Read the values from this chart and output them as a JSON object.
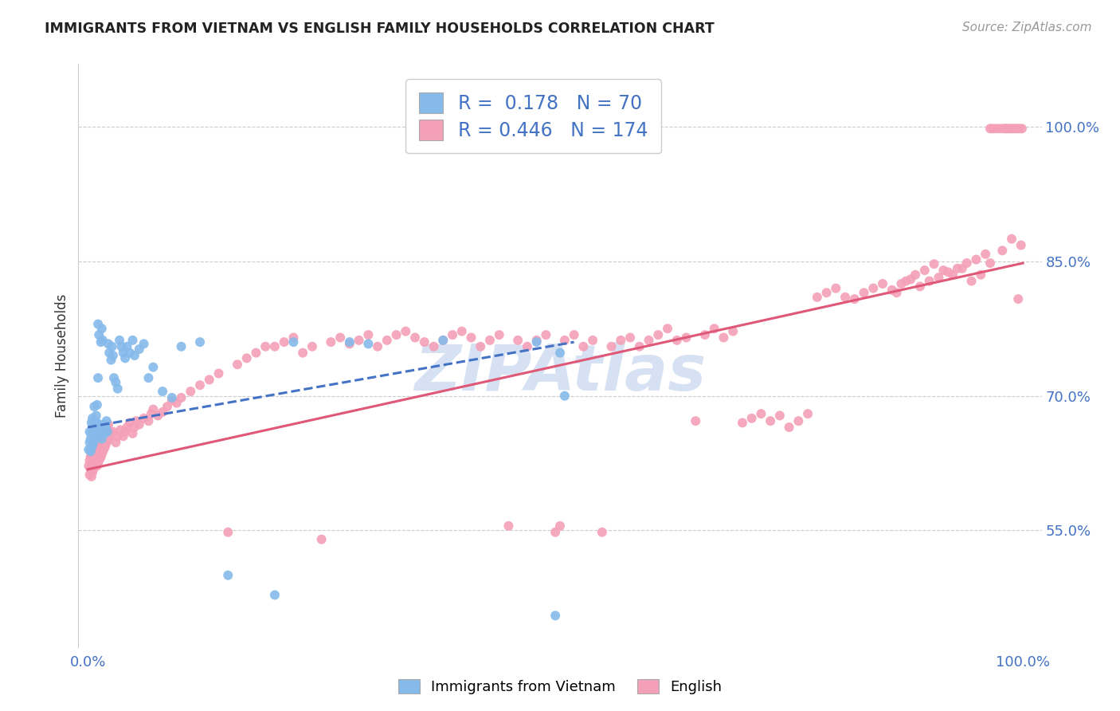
{
  "title": "IMMIGRANTS FROM VIETNAM VS ENGLISH FAMILY HOUSEHOLDS CORRELATION CHART",
  "source": "Source: ZipAtlas.com",
  "ylabel": "Family Households",
  "x_tick_labels": [
    "0.0%",
    "100.0%"
  ],
  "y_tick_labels": [
    "55.0%",
    "70.0%",
    "85.0%",
    "100.0%"
  ],
  "y_tick_values": [
    0.55,
    0.7,
    0.85,
    1.0
  ],
  "x_lim": [
    -0.01,
    1.02
  ],
  "y_lim": [
    0.42,
    1.07
  ],
  "blue_R": "0.178",
  "blue_N": "70",
  "pink_R": "0.446",
  "pink_N": "174",
  "blue_color": "#85BAEA",
  "pink_color": "#F4A0B8",
  "blue_line_color": "#4472C4",
  "pink_line_color": "#E05878",
  "title_color": "#222222",
  "source_color": "#999999",
  "legend_R_N_color": "#4472C4",
  "axis_label_color": "#4472C4",
  "watermark_color": "#C5D5EE",
  "grid_color": "#CCCCCC",
  "blue_line": [
    0.0,
    0.665,
    0.52,
    0.76
  ],
  "pink_line": [
    0.0,
    0.618,
    1.0,
    0.848
  ],
  "blue_scatter": [
    [
      0.001,
      0.64
    ],
    [
      0.002,
      0.648
    ],
    [
      0.002,
      0.66
    ],
    [
      0.003,
      0.638
    ],
    [
      0.003,
      0.652
    ],
    [
      0.004,
      0.642
    ],
    [
      0.004,
      0.658
    ],
    [
      0.004,
      0.67
    ],
    [
      0.005,
      0.645
    ],
    [
      0.005,
      0.66
    ],
    [
      0.005,
      0.675
    ],
    [
      0.006,
      0.648
    ],
    [
      0.006,
      0.663
    ],
    [
      0.007,
      0.652
    ],
    [
      0.007,
      0.668
    ],
    [
      0.007,
      0.688
    ],
    [
      0.008,
      0.658
    ],
    [
      0.008,
      0.672
    ],
    [
      0.009,
      0.662
    ],
    [
      0.009,
      0.678
    ],
    [
      0.01,
      0.655
    ],
    [
      0.01,
      0.67
    ],
    [
      0.01,
      0.69
    ],
    [
      0.011,
      0.72
    ],
    [
      0.011,
      0.78
    ],
    [
      0.012,
      0.768
    ],
    [
      0.013,
      0.66
    ],
    [
      0.014,
      0.76
    ],
    [
      0.015,
      0.652
    ],
    [
      0.015,
      0.775
    ],
    [
      0.016,
      0.762
    ],
    [
      0.017,
      0.668
    ],
    [
      0.018,
      0.658
    ],
    [
      0.019,
      0.665
    ],
    [
      0.02,
      0.672
    ],
    [
      0.021,
      0.66
    ],
    [
      0.022,
      0.758
    ],
    [
      0.023,
      0.748
    ],
    [
      0.025,
      0.74
    ],
    [
      0.026,
      0.755
    ],
    [
      0.027,
      0.745
    ],
    [
      0.028,
      0.72
    ],
    [
      0.03,
      0.715
    ],
    [
      0.032,
      0.708
    ],
    [
      0.034,
      0.762
    ],
    [
      0.036,
      0.755
    ],
    [
      0.038,
      0.748
    ],
    [
      0.04,
      0.742
    ],
    [
      0.042,
      0.755
    ],
    [
      0.045,
      0.748
    ],
    [
      0.048,
      0.762
    ],
    [
      0.05,
      0.745
    ],
    [
      0.055,
      0.752
    ],
    [
      0.06,
      0.758
    ],
    [
      0.065,
      0.72
    ],
    [
      0.07,
      0.732
    ],
    [
      0.08,
      0.705
    ],
    [
      0.09,
      0.698
    ],
    [
      0.1,
      0.755
    ],
    [
      0.12,
      0.76
    ],
    [
      0.15,
      0.5
    ],
    [
      0.2,
      0.478
    ],
    [
      0.22,
      0.76
    ],
    [
      0.28,
      0.76
    ],
    [
      0.3,
      0.758
    ],
    [
      0.38,
      0.762
    ],
    [
      0.48,
      0.76
    ],
    [
      0.5,
      0.455
    ],
    [
      0.505,
      0.748
    ],
    [
      0.51,
      0.7
    ]
  ],
  "pink_scatter": [
    [
      0.001,
      0.622
    ],
    [
      0.002,
      0.612
    ],
    [
      0.002,
      0.628
    ],
    [
      0.003,
      0.618
    ],
    [
      0.003,
      0.632
    ],
    [
      0.004,
      0.61
    ],
    [
      0.004,
      0.622
    ],
    [
      0.004,
      0.636
    ],
    [
      0.005,
      0.615
    ],
    [
      0.005,
      0.625
    ],
    [
      0.005,
      0.64
    ],
    [
      0.006,
      0.618
    ],
    [
      0.006,
      0.63
    ],
    [
      0.007,
      0.622
    ],
    [
      0.007,
      0.635
    ],
    [
      0.007,
      0.65
    ],
    [
      0.008,
      0.625
    ],
    [
      0.008,
      0.638
    ],
    [
      0.008,
      0.652
    ],
    [
      0.009,
      0.628
    ],
    [
      0.009,
      0.64
    ],
    [
      0.01,
      0.622
    ],
    [
      0.01,
      0.635
    ],
    [
      0.01,
      0.648
    ],
    [
      0.011,
      0.625
    ],
    [
      0.011,
      0.64
    ],
    [
      0.012,
      0.628
    ],
    [
      0.012,
      0.642
    ],
    [
      0.013,
      0.63
    ],
    [
      0.013,
      0.645
    ],
    [
      0.014,
      0.632
    ],
    [
      0.014,
      0.648
    ],
    [
      0.015,
      0.635
    ],
    [
      0.015,
      0.65
    ],
    [
      0.016,
      0.638
    ],
    [
      0.016,
      0.652
    ],
    [
      0.017,
      0.64
    ],
    [
      0.017,
      0.655
    ],
    [
      0.018,
      0.642
    ],
    [
      0.018,
      0.658
    ],
    [
      0.019,
      0.645
    ],
    [
      0.019,
      0.66
    ],
    [
      0.02,
      0.648
    ],
    [
      0.02,
      0.662
    ],
    [
      0.021,
      0.65
    ],
    [
      0.021,
      0.665
    ],
    [
      0.022,
      0.652
    ],
    [
      0.022,
      0.668
    ],
    [
      0.023,
      0.655
    ],
    [
      0.025,
      0.658
    ],
    [
      0.027,
      0.66
    ],
    [
      0.03,
      0.648
    ],
    [
      0.032,
      0.655
    ],
    [
      0.035,
      0.662
    ],
    [
      0.038,
      0.655
    ],
    [
      0.04,
      0.66
    ],
    [
      0.042,
      0.665
    ],
    [
      0.045,
      0.67
    ],
    [
      0.048,
      0.658
    ],
    [
      0.05,
      0.665
    ],
    [
      0.052,
      0.672
    ],
    [
      0.055,
      0.668
    ],
    [
      0.06,
      0.675
    ],
    [
      0.065,
      0.672
    ],
    [
      0.068,
      0.68
    ],
    [
      0.07,
      0.685
    ],
    [
      0.075,
      0.678
    ],
    [
      0.08,
      0.682
    ],
    [
      0.085,
      0.688
    ],
    [
      0.09,
      0.695
    ],
    [
      0.095,
      0.692
    ],
    [
      0.1,
      0.698
    ],
    [
      0.11,
      0.705
    ],
    [
      0.12,
      0.712
    ],
    [
      0.13,
      0.718
    ],
    [
      0.14,
      0.725
    ],
    [
      0.15,
      0.548
    ],
    [
      0.16,
      0.735
    ],
    [
      0.17,
      0.742
    ],
    [
      0.18,
      0.748
    ],
    [
      0.19,
      0.755
    ],
    [
      0.2,
      0.755
    ],
    [
      0.21,
      0.76
    ],
    [
      0.22,
      0.765
    ],
    [
      0.23,
      0.748
    ],
    [
      0.24,
      0.755
    ],
    [
      0.25,
      0.54
    ],
    [
      0.26,
      0.76
    ],
    [
      0.27,
      0.765
    ],
    [
      0.28,
      0.758
    ],
    [
      0.29,
      0.762
    ],
    [
      0.3,
      0.768
    ],
    [
      0.31,
      0.755
    ],
    [
      0.32,
      0.762
    ],
    [
      0.33,
      0.768
    ],
    [
      0.34,
      0.772
    ],
    [
      0.35,
      0.765
    ],
    [
      0.36,
      0.76
    ],
    [
      0.37,
      0.755
    ],
    [
      0.38,
      0.762
    ],
    [
      0.39,
      0.768
    ],
    [
      0.4,
      0.772
    ],
    [
      0.41,
      0.765
    ],
    [
      0.42,
      0.755
    ],
    [
      0.43,
      0.762
    ],
    [
      0.44,
      0.768
    ],
    [
      0.45,
      0.555
    ],
    [
      0.46,
      0.762
    ],
    [
      0.47,
      0.755
    ],
    [
      0.48,
      0.762
    ],
    [
      0.49,
      0.768
    ],
    [
      0.5,
      0.548
    ],
    [
      0.505,
      0.555
    ],
    [
      0.51,
      0.762
    ],
    [
      0.52,
      0.768
    ],
    [
      0.53,
      0.755
    ],
    [
      0.54,
      0.762
    ],
    [
      0.55,
      0.548
    ],
    [
      0.56,
      0.755
    ],
    [
      0.57,
      0.762
    ],
    [
      0.58,
      0.765
    ],
    [
      0.59,
      0.755
    ],
    [
      0.6,
      0.762
    ],
    [
      0.61,
      0.768
    ],
    [
      0.62,
      0.775
    ],
    [
      0.63,
      0.762
    ],
    [
      0.64,
      0.765
    ],
    [
      0.65,
      0.672
    ],
    [
      0.66,
      0.768
    ],
    [
      0.67,
      0.775
    ],
    [
      0.68,
      0.765
    ],
    [
      0.69,
      0.772
    ],
    [
      0.7,
      0.67
    ],
    [
      0.71,
      0.675
    ],
    [
      0.72,
      0.68
    ],
    [
      0.73,
      0.672
    ],
    [
      0.74,
      0.678
    ],
    [
      0.75,
      0.665
    ],
    [
      0.76,
      0.672
    ],
    [
      0.77,
      0.68
    ],
    [
      0.78,
      0.81
    ],
    [
      0.79,
      0.815
    ],
    [
      0.8,
      0.82
    ],
    [
      0.81,
      0.81
    ],
    [
      0.82,
      0.808
    ],
    [
      0.83,
      0.815
    ],
    [
      0.84,
      0.82
    ],
    [
      0.85,
      0.825
    ],
    [
      0.86,
      0.818
    ],
    [
      0.87,
      0.825
    ],
    [
      0.88,
      0.83
    ],
    [
      0.89,
      0.822
    ],
    [
      0.9,
      0.828
    ],
    [
      0.91,
      0.832
    ],
    [
      0.92,
      0.838
    ],
    [
      0.93,
      0.842
    ],
    [
      0.94,
      0.848
    ],
    [
      0.95,
      0.852
    ],
    [
      0.96,
      0.858
    ],
    [
      0.965,
      0.998
    ],
    [
      0.968,
      0.998
    ],
    [
      0.972,
      0.998
    ],
    [
      0.976,
      0.998
    ],
    [
      0.98,
      0.998
    ],
    [
      0.982,
      0.998
    ],
    [
      0.984,
      0.998
    ],
    [
      0.987,
      0.998
    ],
    [
      0.99,
      0.998
    ],
    [
      0.993,
      0.998
    ],
    [
      0.996,
      0.998
    ],
    [
      0.999,
      0.998
    ],
    [
      0.998,
      0.868
    ],
    [
      0.995,
      0.808
    ],
    [
      0.988,
      0.875
    ],
    [
      0.978,
      0.862
    ],
    [
      0.965,
      0.848
    ],
    [
      0.955,
      0.835
    ],
    [
      0.945,
      0.828
    ],
    [
      0.935,
      0.842
    ],
    [
      0.925,
      0.835
    ],
    [
      0.915,
      0.84
    ],
    [
      0.905,
      0.847
    ],
    [
      0.895,
      0.84
    ],
    [
      0.885,
      0.835
    ],
    [
      0.875,
      0.828
    ],
    [
      0.865,
      0.815
    ]
  ]
}
